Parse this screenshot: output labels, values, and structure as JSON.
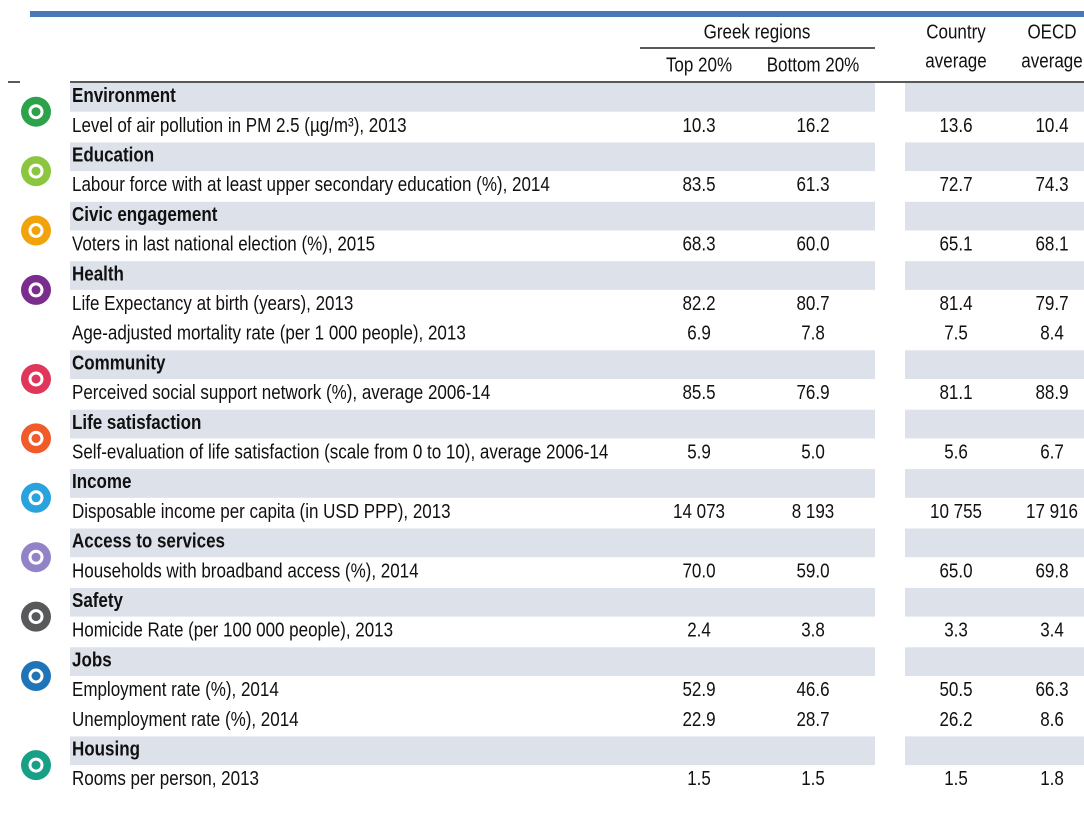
{
  "header": {
    "group": "Greek regions",
    "columns": [
      "Top 20%",
      "Bottom 20%",
      "Country average",
      "OECD average"
    ]
  },
  "sections": [
    {
      "name": "Environment",
      "rows": [
        {
          "label": "Level of air pollution in PM 2.5 (µg/m³), 2013",
          "values": [
            "10.3",
            "16.2",
            "13.6",
            "10.4"
          ]
        }
      ]
    },
    {
      "name": "Education",
      "rows": [
        {
          "label": "Labour force with at least upper secondary education (%), 2014",
          "values": [
            "83.5",
            "61.3",
            "72.7",
            "74.3"
          ]
        }
      ]
    },
    {
      "name": "Civic engagement",
      "rows": [
        {
          "label": "Voters in last national election (%), 2015",
          "values": [
            "68.3",
            "60.0",
            "65.1",
            "68.1"
          ]
        }
      ]
    },
    {
      "name": "Health",
      "rows": [
        {
          "label": "Life Expectancy at birth (years), 2013",
          "values": [
            "82.2",
            "80.7",
            "81.4",
            "79.7"
          ]
        },
        {
          "label": "Age-adjusted mortality rate (per 1 000 people), 2013",
          "values": [
            "6.9",
            "7.8",
            "7.5",
            "8.4"
          ]
        }
      ]
    },
    {
      "name": "Community",
      "rows": [
        {
          "label": "Perceived social support network (%), average 2006-14",
          "values": [
            "85.5",
            "76.9",
            "81.1",
            "88.9"
          ]
        }
      ]
    },
    {
      "name": "Life satisfaction",
      "rows": [
        {
          "label": "Self-evaluation of life satisfaction (scale from 0 to 10), average 2006-14",
          "values": [
            "5.9",
            "5.0",
            "5.6",
            "6.7"
          ]
        }
      ]
    },
    {
      "name": "Income",
      "rows": [
        {
          "label": "Disposable income per capita (in USD PPP), 2013",
          "values": [
            "14 073",
            "8 193",
            "10 755",
            "17 916"
          ]
        }
      ]
    },
    {
      "name": "Access to services",
      "rows": [
        {
          "label": "Households with broadband access (%), 2014",
          "values": [
            "70.0",
            "59.0",
            "65.0",
            "69.8"
          ]
        }
      ]
    },
    {
      "name": "Safety",
      "rows": [
        {
          "label": "Homicide Rate (per 100 000 people), 2013",
          "values": [
            "2.4",
            "3.8",
            "3.3",
            "3.4"
          ]
        }
      ]
    },
    {
      "name": "Jobs",
      "rows": [
        {
          "label": "Employment rate (%), 2014",
          "values": [
            "52.9",
            "46.6",
            "50.5",
            "66.3"
          ]
        },
        {
          "label": "Unemployment rate (%), 2014",
          "values": [
            "22.9",
            "28.7",
            "26.2",
            "8.6"
          ]
        }
      ]
    },
    {
      "name": "Housing",
      "rows": [
        {
          "label": "Rooms per person, 2013",
          "values": [
            "1.5",
            "1.5",
            "1.5",
            "1.8"
          ]
        }
      ]
    }
  ]
}
